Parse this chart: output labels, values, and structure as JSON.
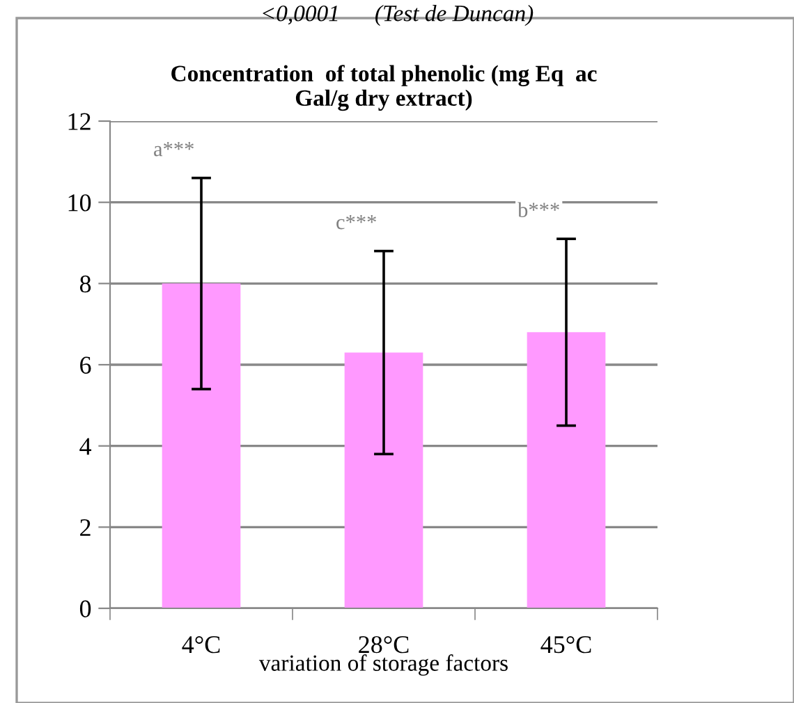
{
  "chart_data": {
    "type": "bar",
    "title": "Concentration  of total phenolic (mg Eq  ac\nGal/g dry extract)",
    "xlabel": "variation of storage factors",
    "categories": [
      "4°C",
      "28°C",
      "45°C"
    ],
    "values": [
      8.0,
      6.3,
      6.8
    ],
    "errors": [
      2.6,
      2.5,
      2.3
    ],
    "color": "#ff99ff",
    "ylim": [
      0,
      12
    ],
    "yticks": [
      0,
      2,
      4,
      6,
      8,
      10,
      12
    ],
    "grid": "y",
    "annotations": [
      "<0,0001      (Test de Duncan)",
      "a***",
      "c***",
      "b***"
    ]
  }
}
